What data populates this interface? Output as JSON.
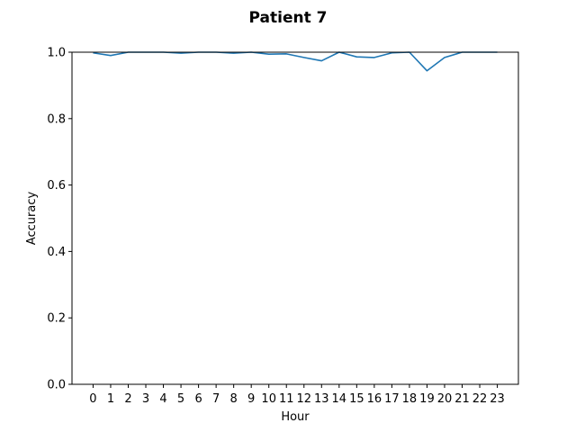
{
  "chart_data": {
    "type": "line",
    "title": "Patient 7",
    "xlabel": "Hour",
    "ylabel": "Accuracy",
    "ylim": [
      0.0,
      1.0
    ],
    "xlim": [
      -1.2,
      24.2
    ],
    "yticks": [
      "0.0",
      "0.2",
      "0.4",
      "0.6",
      "0.8",
      "1.0"
    ],
    "grid": false,
    "color": "#1f77b4",
    "series": [
      {
        "x": [
          0,
          1,
          2,
          3,
          4,
          5,
          6,
          7,
          8,
          9,
          10,
          11,
          12,
          13,
          14,
          15,
          16,
          17,
          18,
          19,
          20,
          21,
          22,
          23
        ],
        "values": [
          0.998,
          0.99,
          1.0,
          1.0,
          1.0,
          0.997,
          1.0,
          1.0,
          0.997,
          1.0,
          0.994,
          0.995,
          0.984,
          0.974,
          1.0,
          0.986,
          0.984,
          0.998,
          1.0,
          0.944,
          0.984,
          1.0,
          1.0,
          1.0
        ]
      }
    ]
  }
}
